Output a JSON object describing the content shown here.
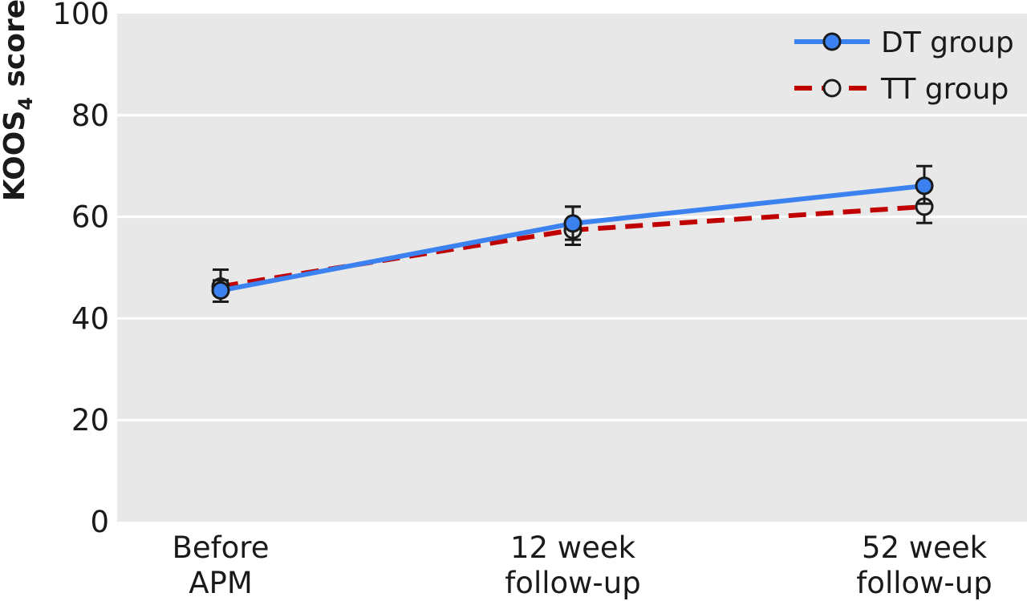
{
  "chart_data": {
    "type": "line",
    "title": "",
    "xlabel": "",
    "ylabel": {
      "text": "KOOS",
      "subscript": "4",
      "suffix": " score"
    },
    "ylim": [
      0,
      100
    ],
    "yticks": [
      0,
      20,
      40,
      60,
      80,
      100
    ],
    "grid": true,
    "legend": "top-right",
    "categories": [
      [
        "Before",
        "APM"
      ],
      [
        "12 week",
        "follow-up"
      ],
      [
        "52 week",
        "follow-up"
      ]
    ],
    "series": [
      {
        "name": "DT group",
        "values": [
          45.5,
          58.7,
          66.1
        ],
        "error_low": [
          43.3,
          55.5,
          62.6
        ],
        "error_high": [
          47.5,
          62.0,
          70.0
        ],
        "color": "#3b82f0",
        "marker_fill": "#3b82f0",
        "line_style": "solid"
      },
      {
        "name": "TT group",
        "values": [
          46.3,
          57.4,
          62.0
        ],
        "error_low": [
          43.3,
          54.5,
          58.8
        ],
        "error_high": [
          49.6,
          62.0,
          66.0
        ],
        "color": "#c00000",
        "marker_fill": "#e6e6e6",
        "line_style": "dashed"
      }
    ],
    "colors": {
      "plot_background": "#e8e8e8",
      "gridline": "#ffffff",
      "marker_stroke": "#1a1a1a",
      "error_bar": "#1a1a1a"
    }
  }
}
